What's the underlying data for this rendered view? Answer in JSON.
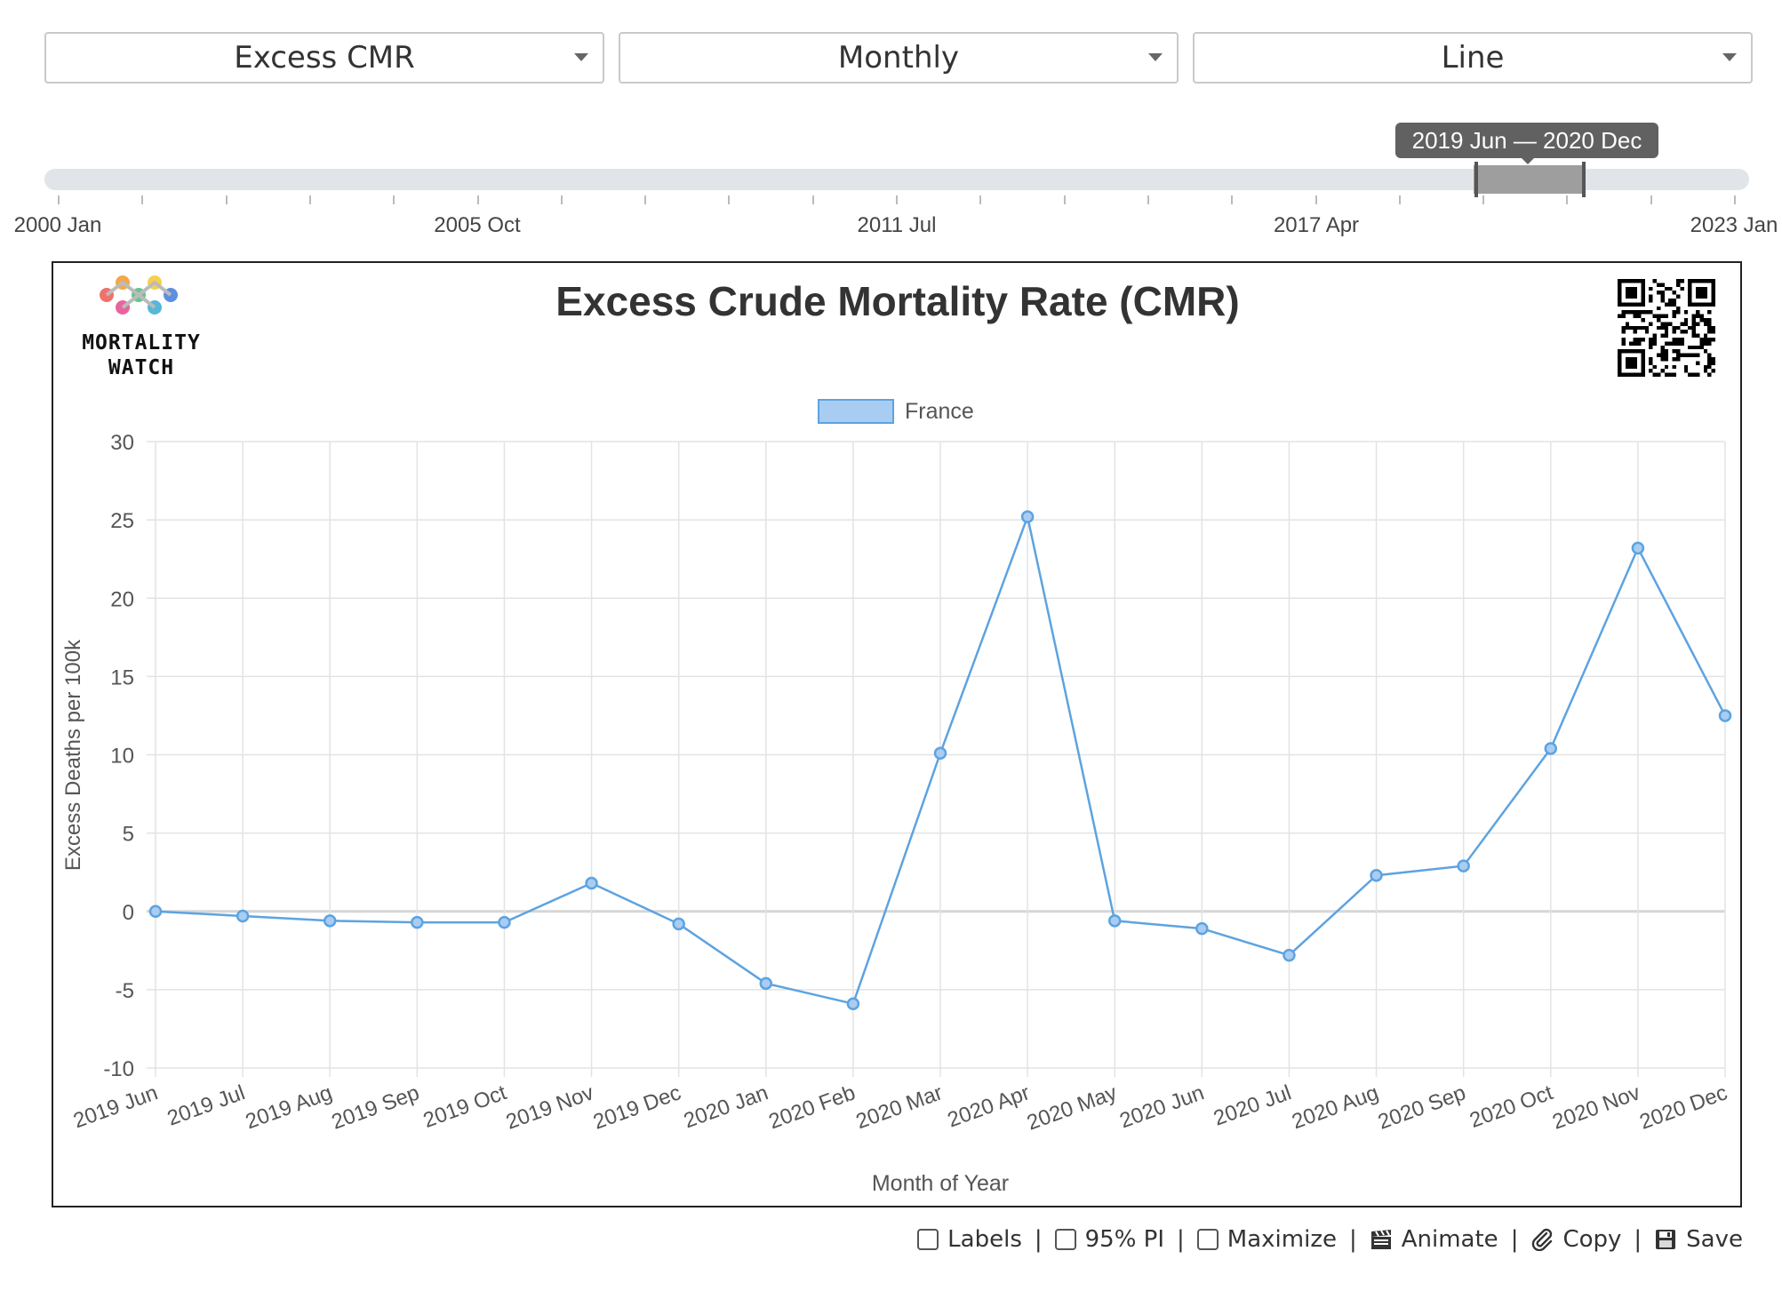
{
  "controls": {
    "metric": "Excess CMR",
    "period": "Monthly",
    "chart_type": "Line"
  },
  "range_slider": {
    "tooltip": "2019 Jun — 2020 Dec",
    "labels": [
      "2000 Jan",
      "2005 Oct",
      "2011 Jul",
      "2017 Apr",
      "2023 Jan"
    ]
  },
  "branding": {
    "logo_line1": "MORTALITY",
    "logo_line2": "WATCH"
  },
  "toolbar": {
    "labels": "Labels",
    "pi": "95% PI",
    "maximize": "Maximize",
    "animate": "Animate",
    "copy": "Copy",
    "save": "Save",
    "separator": "|"
  },
  "colors": {
    "series": "#5da3e0",
    "series_fill": "#a9cdf2",
    "grid": "#e3e3e3"
  },
  "chart_data": {
    "type": "line",
    "title": "Excess Crude Mortality Rate (CMR)",
    "xlabel": "Month of Year",
    "ylabel": "Excess Deaths per 100k",
    "ylim": [
      -10,
      30
    ],
    "yticks": [
      30,
      25,
      20,
      15,
      10,
      5,
      0,
      -5,
      -10
    ],
    "legend_position": "top-center",
    "grid": true,
    "categories": [
      "2019 Jun",
      "2019 Jul",
      "2019 Aug",
      "2019 Sep",
      "2019 Oct",
      "2019 Nov",
      "2019 Dec",
      "2020 Jan",
      "2020 Feb",
      "2020 Mar",
      "2020 Apr",
      "2020 May",
      "2020 Jun",
      "2020 Jul",
      "2020 Aug",
      "2020 Sep",
      "2020 Oct",
      "2020 Nov",
      "2020 Dec"
    ],
    "series": [
      {
        "name": "France",
        "values": [
          0.0,
          -0.3,
          -0.6,
          -0.7,
          -0.7,
          1.8,
          -0.8,
          -4.6,
          -5.9,
          10.1,
          25.2,
          -0.6,
          -1.1,
          -2.8,
          2.3,
          2.9,
          10.4,
          23.2,
          12.5
        ]
      }
    ]
  }
}
